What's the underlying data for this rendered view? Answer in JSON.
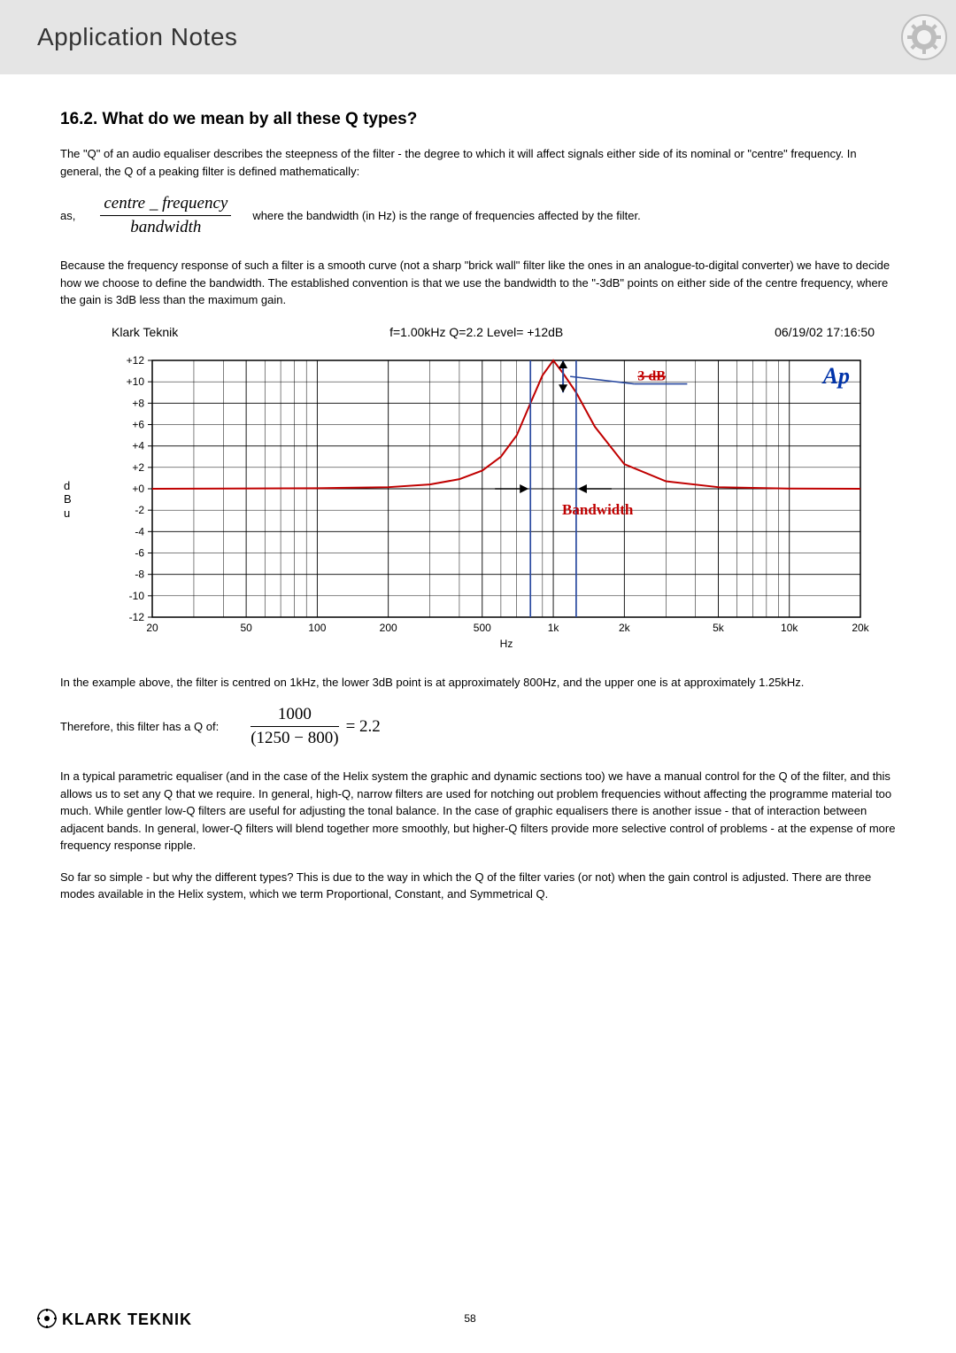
{
  "header": {
    "title": "Application Notes"
  },
  "section": {
    "number_title": "16.2. What do we mean by all these Q types?",
    "intro": "The \"Q\" of an audio equaliser describes the steepness of the filter - the degree to which it will affect signals either side of its nominal or \"centre\" frequency.  In general, the Q of a peaking filter is defined mathematically:",
    "as": "as,",
    "formula1": {
      "numerator": "centre _ frequency",
      "denominator": "bandwidth"
    },
    "where": "where the bandwidth (in Hz) is the range of frequencies affected by the filter.",
    "para2": "Because the frequency response of such a filter is a smooth curve (not a sharp \"brick wall\" filter like the ones in an analogue-to-digital converter) we have to decide how we choose to define the bandwidth.  The established convention is that we use the bandwidth to the \"-3dB\" points on either side of the centre frequency, where the gain is 3dB less than the maximum gain.",
    "chart": {
      "brand": "Klark Teknik",
      "title": "f=1.00kHz  Q=2.2  Level= +12dB",
      "timestamp": "06/19/02 17:16:50",
      "y_label_lines": [
        "d",
        "B",
        "u"
      ],
      "x_label": "Hz",
      "y_ticks": [
        "+12",
        "+10",
        "+8",
        "+6",
        "+4",
        "+2",
        "+0",
        "-2",
        "-4",
        "-6",
        "-8",
        "-10",
        "-12"
      ],
      "x_ticks": [
        "20",
        "50",
        "100",
        "200",
        "500",
        "1k",
        "2k",
        "5k",
        "10k",
        "20k"
      ],
      "ann_3db": "3 dB",
      "ann_bw": "Bandwidth",
      "ap_label": "Ap",
      "colors": {
        "grid": "#000000",
        "curve": "#c00000",
        "ann_text": "#c00000",
        "ann_stroke": "#2a4aa0",
        "ap_text": "#0033aa",
        "bg": "#ffffff"
      },
      "curve_points": [
        [
          20,
          0
        ],
        [
          100,
          0.05
        ],
        [
          200,
          0.15
        ],
        [
          300,
          0.4
        ],
        [
          400,
          0.9
        ],
        [
          500,
          1.7
        ],
        [
          600,
          3
        ],
        [
          700,
          5
        ],
        [
          800,
          8
        ],
        [
          900,
          10.6
        ],
        [
          1000,
          12
        ],
        [
          1100,
          10.8
        ],
        [
          1250,
          9
        ],
        [
          1500,
          5.8
        ],
        [
          2000,
          2.3
        ],
        [
          3000,
          0.7
        ],
        [
          5000,
          0.15
        ],
        [
          10000,
          0.02
        ],
        [
          20000,
          0
        ]
      ],
      "bw_markers_hz": [
        800,
        1250
      ],
      "three_db_hz": 1100,
      "xlim": [
        20,
        20000
      ],
      "ylim": [
        -12,
        12
      ]
    },
    "para3": "In the example above, the filter is centred on 1kHz, the lower 3dB point is at approximately 800Hz, and the upper one is at approximately 1.25kHz.",
    "formula2_lead": "Therefore, this filter has a Q of:",
    "formula2": {
      "numerator": "1000",
      "denominator": "(1250 − 800)",
      "equals": "= 2.2"
    },
    "para4": "In a typical parametric equaliser (and in the case of the Helix system the graphic and dynamic sections too) we have a manual control for the Q of the filter, and this allows us to set any Q that we require.  In general, high-Q, narrow filters are used for notching out problem frequencies without affecting the programme material too much.  While gentler low-Q filters are useful for adjusting the tonal balance.  In the case of graphic equalisers there is another issue - that of interaction between adjacent bands.  In general, lower-Q filters will blend together more smoothly, but higher-Q filters provide more selective control of problems - at the expense of more frequency response ripple.",
    "para5": "So far so simple - but why the different types?  This is due to the way in which the Q of the filter varies (or not) when the gain control is adjusted.  There are three modes available in the Helix system, which we term Proportional, Constant, and Symmetrical Q."
  },
  "footer": {
    "page": "58",
    "logo_text": "KLARK TEKNIK"
  }
}
